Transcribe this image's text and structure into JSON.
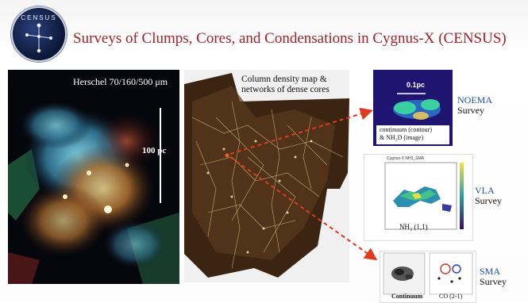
{
  "header": {
    "logo_text": "CENSUS",
    "title": "Surveys of Clumps, Cores, and Condensations in Cygnus-X (CENSUS)"
  },
  "herschel": {
    "label": "Herschel  70/160/500 μm",
    "scale_label": "100 pc"
  },
  "column_density": {
    "label_line1": "Column density map &",
    "label_line2": "networks of dense cores"
  },
  "noema": {
    "scale": "0.1pc",
    "caption_line1": "continuum (contour)",
    "caption_line2": "& NH₂D (image)",
    "survey_name": "NOEMA",
    "survey_word": "Survey"
  },
  "vla": {
    "plot_title": "Cygnus-X NH3_SMA",
    "caption": "NH₃ (1,1)",
    "survey_name": "VLA",
    "survey_word": "Survey"
  },
  "sma": {
    "caption_left": "Continuum",
    "caption_right": "CO (2-1)",
    "survey_name": "SMA",
    "survey_word": "Survey"
  },
  "colors": {
    "title": "#a0222a",
    "survey_name": "#1f4fa6",
    "arrow": "#e03a20"
  }
}
